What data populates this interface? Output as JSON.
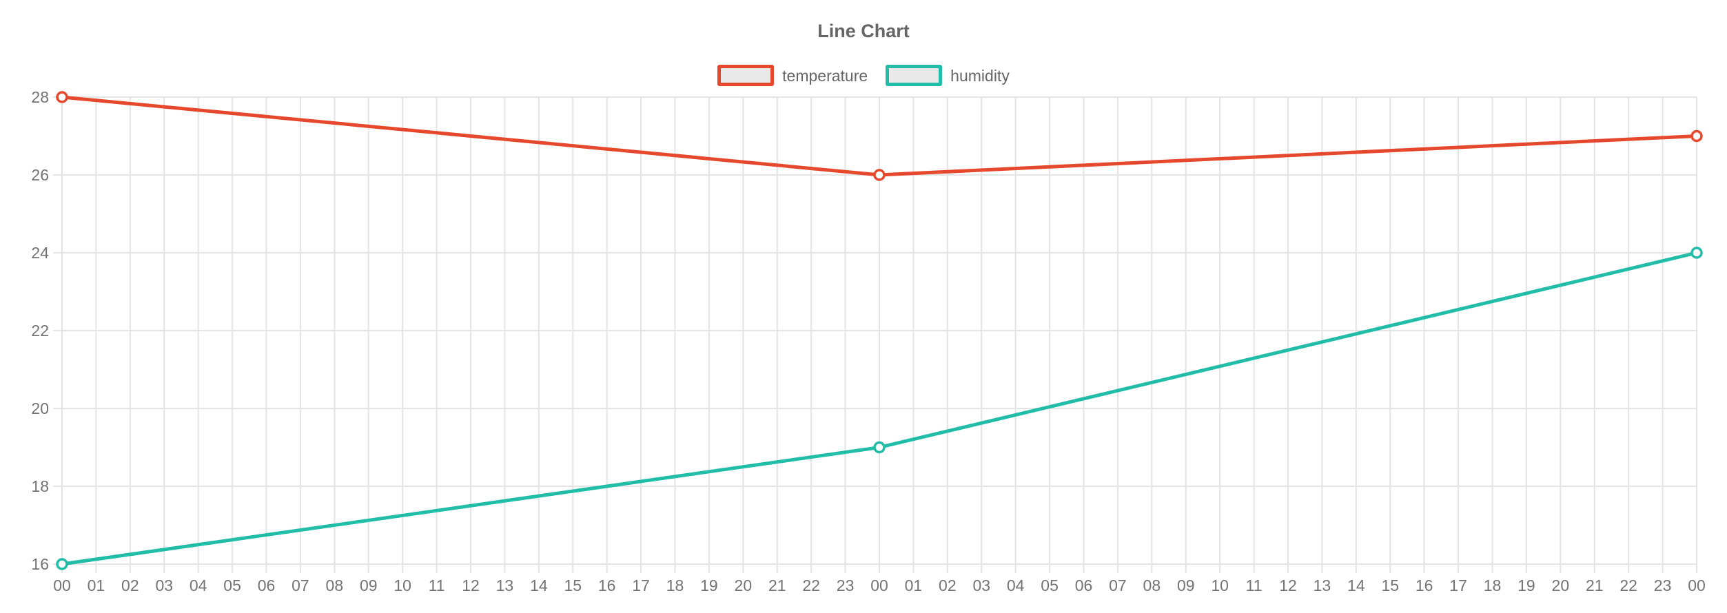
{
  "chart_data": {
    "type": "line",
    "title": "Line Chart",
    "x_labels": [
      "00",
      "01",
      "02",
      "03",
      "04",
      "05",
      "06",
      "07",
      "08",
      "09",
      "10",
      "11",
      "12",
      "13",
      "14",
      "15",
      "16",
      "17",
      "18",
      "19",
      "20",
      "21",
      "22",
      "23",
      "00",
      "01",
      "02",
      "03",
      "04",
      "05",
      "06",
      "07",
      "08",
      "09",
      "10",
      "11",
      "12",
      "13",
      "14",
      "15",
      "16",
      "17",
      "18",
      "19",
      "20",
      "21",
      "22",
      "23",
      "00"
    ],
    "y_ticks": [
      16,
      18,
      20,
      22,
      24,
      26,
      28
    ],
    "ylim": [
      16,
      28
    ],
    "grid": true,
    "legend_position": "top",
    "marker": "hollow-circle",
    "series": [
      {
        "name": "temperature",
        "color": "#e5482c",
        "points": [
          {
            "x_index": 0,
            "x_label": "00",
            "value": 28
          },
          {
            "x_index": 24,
            "x_label": "00",
            "value": 26
          },
          {
            "x_index": 48,
            "x_label": "00",
            "value": 27
          }
        ]
      },
      {
        "name": "humidity",
        "color": "#21bda8",
        "points": [
          {
            "x_index": 0,
            "x_label": "00",
            "value": 16
          },
          {
            "x_index": 24,
            "x_label": "00",
            "value": 19
          },
          {
            "x_index": 48,
            "x_label": "00",
            "value": 24
          }
        ]
      }
    ]
  },
  "legend": {
    "swatch_fill": "#e9e9e9",
    "items": [
      {
        "label": "temperature",
        "color": "#e5482c"
      },
      {
        "label": "humidity",
        "color": "#21bda8"
      }
    ]
  },
  "colors": {
    "background": "#ffffff",
    "grid": "#e4e4e4",
    "tick_label": "#737373",
    "title": "#666666"
  }
}
